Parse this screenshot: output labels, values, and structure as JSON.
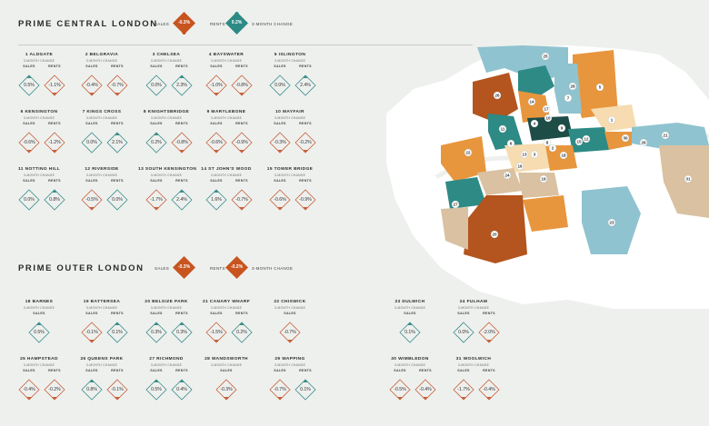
{
  "central": {
    "title": "PRIME CENTRAL LONDON",
    "sales_label": "SALES",
    "sales_value": "-0.3%",
    "rents_label": "RENTS",
    "rents_value": "0.2%",
    "period_label": "3-MONTH CHANGE"
  },
  "outer": {
    "title": "PRIME OUTER LONDON",
    "sales_label": "SALES",
    "sales_value": "-0.3%",
    "rents_label": "RENTS",
    "rents_value": "-0.2%",
    "period_label": "3-MONTH CHANGE"
  },
  "labels": {
    "sub": "3-MONTH CHANGE",
    "sales": "SALES",
    "rents": "RENTS"
  },
  "colors": {
    "orange": "#c8541f",
    "teal": "#2d8a85",
    "up_stroke": "#3a8e8a",
    "down_stroke": "#c8603a"
  },
  "areas": [
    {
      "name": "1 ALDGATE",
      "sales": "0.5%",
      "rents": "-1.1%",
      "sales_dir": "up",
      "rents_dir": "down"
    },
    {
      "name": "2 BELGRAVIA",
      "sales": "-0.4%",
      "rents": "-0.7%",
      "sales_dir": "down",
      "rents_dir": "down"
    },
    {
      "name": "3 CHELSEA",
      "sales": "0.0%",
      "rents": "2.3%",
      "sales_dir": "flat",
      "rents_dir": "up"
    },
    {
      "name": "4 BAYSWATER",
      "sales": "-1.0%",
      "rents": "-0.8%",
      "sales_dir": "down",
      "rents_dir": "down"
    },
    {
      "name": "5 ISLINGTON",
      "sales": "0.0%",
      "rents": "2.4%",
      "sales_dir": "flat",
      "rents_dir": "up"
    },
    {
      "name": "6 KENSINGTON",
      "sales": "-0.6%",
      "rents": "-1.2%",
      "sales_dir": "down",
      "rents_dir": "down"
    },
    {
      "name": "7 KINGS CROSS",
      "sales": "0.0%",
      "rents": "2.1%",
      "sales_dir": "flat",
      "rents_dir": "up"
    },
    {
      "name": "8 KNIGHTSBRIDGE",
      "sales": "0.2%",
      "rents": "-0.8%",
      "sales_dir": "up",
      "rents_dir": "down"
    },
    {
      "name": "9 MARYLEBONE",
      "sales": "-0.6%",
      "rents": "-0.9%",
      "sales_dir": "down",
      "rents_dir": "down"
    },
    {
      "name": "10 MAYFAIR",
      "sales": "-0.3%",
      "rents": "-0.2%",
      "sales_dir": "down",
      "rents_dir": "down"
    },
    {
      "name": "11 NOTTING HILL",
      "sales": "0.0%",
      "rents": "0.8%",
      "sales_dir": "flat",
      "rents_dir": "up"
    },
    {
      "name": "12 RIVERSIDE",
      "sales": "-0.5%",
      "rents": "0.0%",
      "sales_dir": "down",
      "rents_dir": "flat"
    },
    {
      "name": "13 SOUTH KENSINGTON",
      "sales": "-1.7%",
      "rents": "2.4%",
      "sales_dir": "down",
      "rents_dir": "up"
    },
    {
      "name": "14 ST JOHN'S WOOD",
      "sales": "1.6%",
      "rents": "-0.7%",
      "sales_dir": "up",
      "rents_dir": "down"
    },
    {
      "name": "15 TOWER BRIDGE",
      "sales": "-0.6%",
      "rents": "-0.9%",
      "sales_dir": "down",
      "rents_dir": "down"
    },
    {
      "name": "18 BARNES",
      "sales": "0.5%",
      "sales_dir": "up"
    },
    {
      "name": "19 BATTERSEA",
      "sales": "-0.1%",
      "rents": "0.1%",
      "sales_dir": "down",
      "rents_dir": "up"
    },
    {
      "name": "20 BELSIZE PARK",
      "sales": "0.3%",
      "rents": "0.3%",
      "sales_dir": "up",
      "rents_dir": "up"
    },
    {
      "name": "21 CANARY WHARF",
      "sales": "-1.5%",
      "rents": "0.2%",
      "sales_dir": "down",
      "rents_dir": "up"
    },
    {
      "name": "22 CHISWICK",
      "sales": "-0.7%",
      "sales_dir": "down"
    },
    {
      "name": "23 DULWICH",
      "sales": "0.1%",
      "sales_dir": "up"
    },
    {
      "name": "24 FULHAM",
      "sales": "0.0%",
      "rents": "-2.0%",
      "sales_dir": "flat",
      "rents_dir": "down"
    },
    {
      "name": "25 HAMPSTEAD",
      "sales": "-0.4%",
      "rents": "-0.2%",
      "sales_dir": "down",
      "rents_dir": "down"
    },
    {
      "name": "26 QUEENS PARK",
      "sales": "0.8%",
      "rents": "-0.1%",
      "sales_dir": "up",
      "rents_dir": "down"
    },
    {
      "name": "27 RICHMOND",
      "sales": "0.5%",
      "rents": "0.4%",
      "sales_dir": "up",
      "rents_dir": "up"
    },
    {
      "name": "28 WANDSWORTH",
      "sales": "-0.3%",
      "sales_dir": "down"
    },
    {
      "name": "29 WAPPING",
      "sales": "-0.7%",
      "rents": "0.1%",
      "sales_dir": "down",
      "rents_dir": "up"
    },
    {
      "name": "30 WIMBLEDON",
      "sales": "-0.5%",
      "rents": "-0.4%",
      "sales_dir": "down",
      "rents_dir": "down"
    },
    {
      "name": "31 WOOLWICH",
      "sales": "-1.7%",
      "rents": "-0.4%",
      "sales_dir": "down",
      "rents_dir": "down"
    }
  ],
  "map": {
    "pins": [
      "1",
      "2",
      "3",
      "4",
      "5",
      "6",
      "7",
      "8",
      "9",
      "10",
      "11",
      "12",
      "13",
      "14",
      "15",
      "16",
      "17",
      "18",
      "19",
      "20",
      "21",
      "22",
      "23",
      "24",
      "25",
      "26",
      "27",
      "28",
      "29",
      "30",
      "31"
    ]
  }
}
